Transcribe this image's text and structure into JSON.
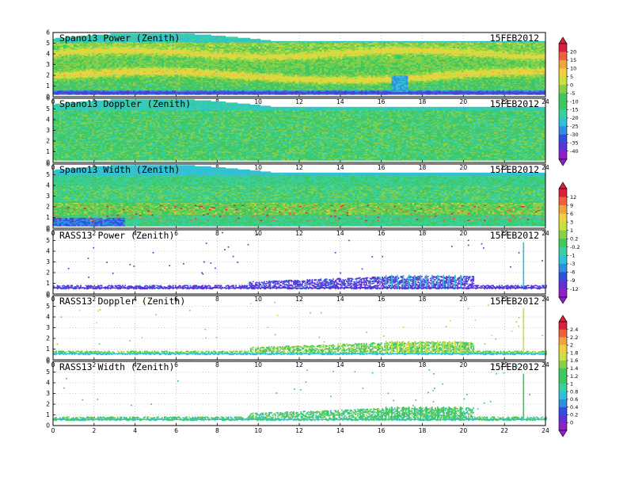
{
  "chart_data": {
    "type": "heatmap",
    "x_ticks": [
      "0",
      "2",
      "4",
      "6",
      "8",
      "10",
      "12",
      "14",
      "16",
      "18",
      "20",
      "22",
      "24"
    ],
    "y_ticks": [
      "0",
      "1",
      "2",
      "3",
      "4",
      "5",
      "6"
    ],
    "xlim": [
      0,
      24
    ],
    "ylim": [
      0,
      6
    ],
    "grid": true,
    "panels": [
      {
        "title": "Spano13 Power (Zenith)",
        "date": "15FEB2012",
        "field": "power",
        "colorbar": 0
      },
      {
        "title": "Spano13 Doppler (Zenith)",
        "date": "15FEB2012",
        "field": "doppler",
        "colorbar": 0
      },
      {
        "title": "Spano13 Width (Zenith)",
        "date": "15FEB2012",
        "field": "width",
        "colorbar": 1
      },
      {
        "title": "RASS13 Power (Zenith)",
        "date": "15FEB2012",
        "field": "rpower",
        "colorbar": 1
      },
      {
        "title": "RASS13 Doppler (Zenith)",
        "date": "15FEB2012",
        "field": "rdoppler",
        "colorbar": 2
      },
      {
        "title": "RASS13 Width (Zenith)",
        "date": "15FEB2012",
        "field": "rwidth",
        "colorbar": 2
      }
    ],
    "colorbars": [
      {
        "labels": [
          "20",
          "15",
          "10",
          "5",
          "0",
          "-5",
          "-10",
          "-15",
          "-20",
          "-25",
          "-30",
          "-35",
          "-40"
        ]
      },
      {
        "labels": [
          "12",
          "9",
          "6",
          "3",
          "1",
          "0.2",
          "-0.2",
          "-1",
          "-3",
          "-6",
          "-9",
          "-12"
        ]
      },
      {
        "labels": [
          "2.4",
          "2.2",
          "2",
          "1.8",
          "1.6",
          "1.4",
          "1.2",
          "1",
          "0.8",
          "0.6",
          "0.4",
          "0.2",
          "0"
        ]
      }
    ],
    "palette": [
      "#d81f3c",
      "#f0603c",
      "#f0a43c",
      "#f0d040",
      "#c8e040",
      "#88d048",
      "#40c860",
      "#38d0a0",
      "#30c0d8",
      "#3090e0",
      "#3050e0",
      "#6030d8",
      "#9020c8"
    ]
  }
}
